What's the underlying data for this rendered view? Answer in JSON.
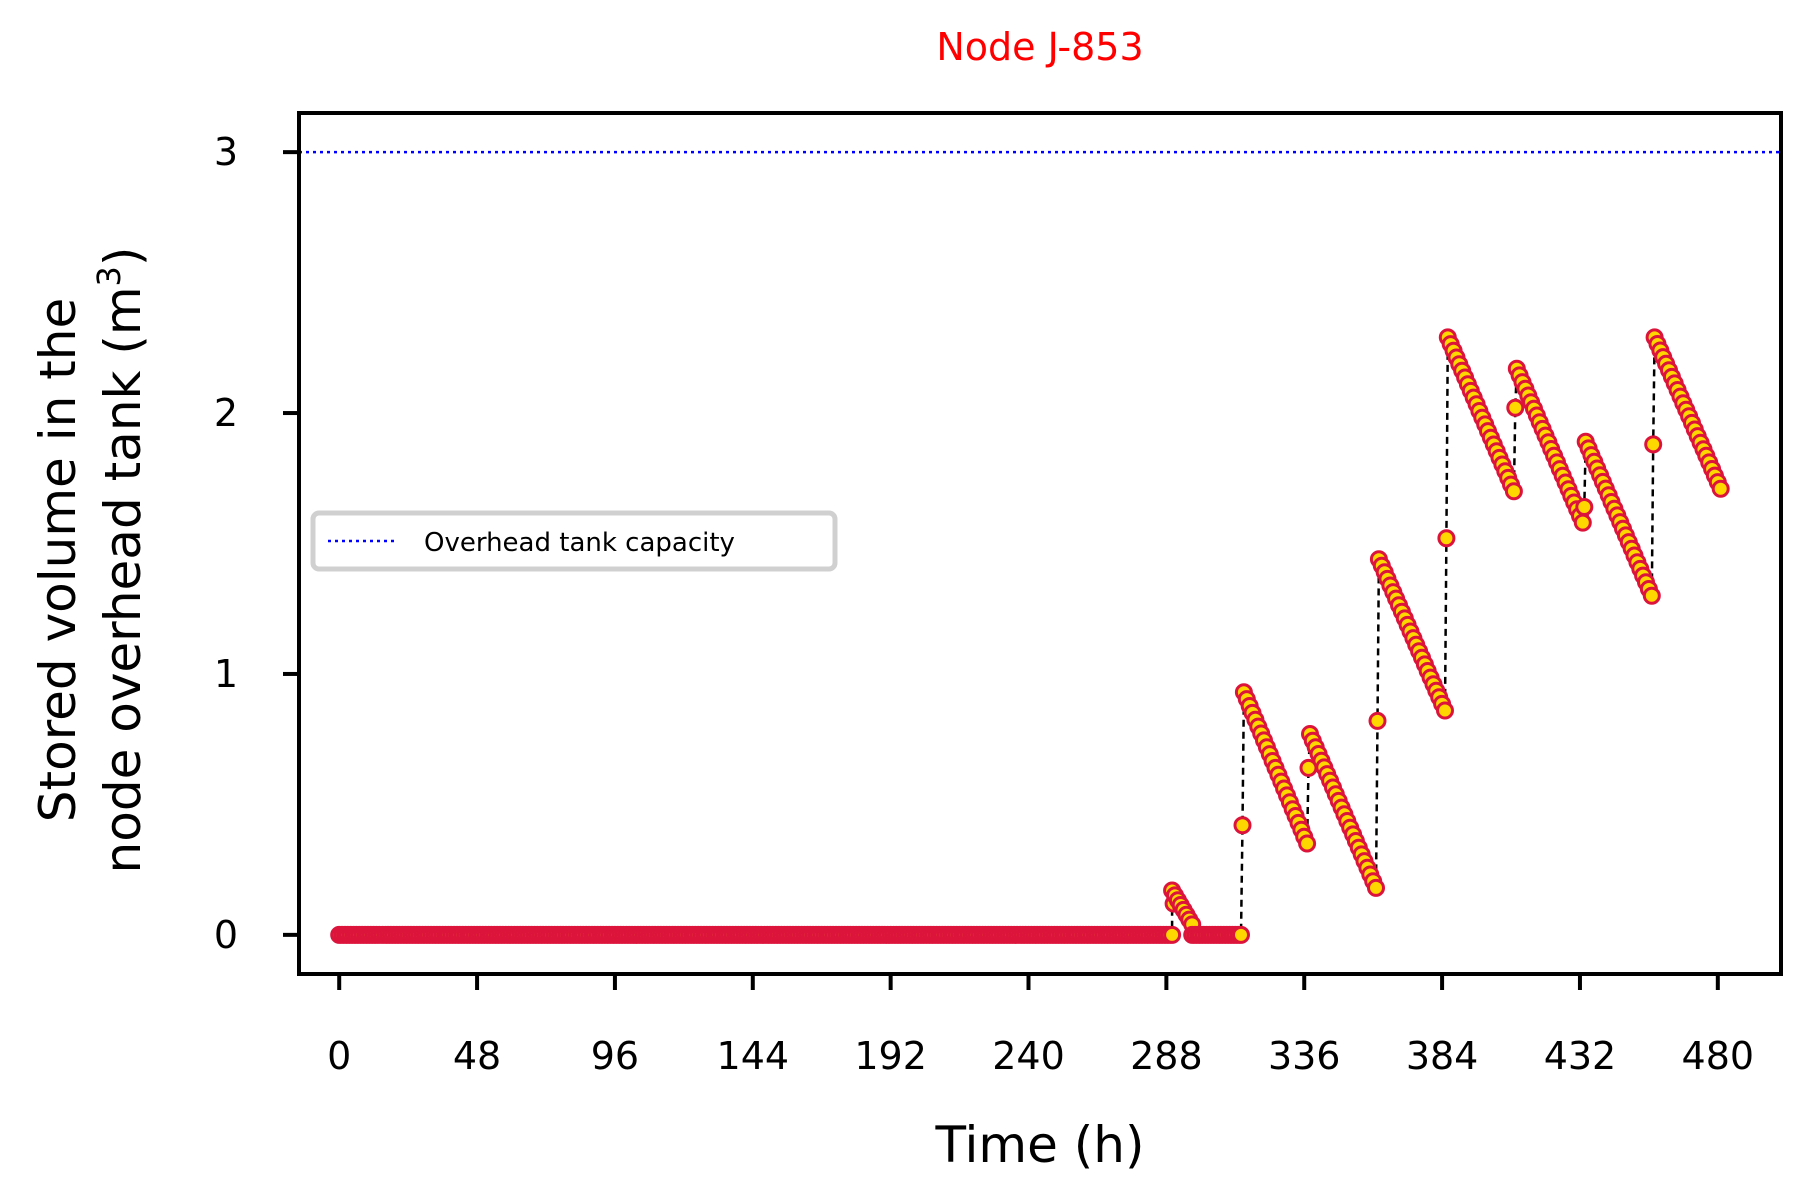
{
  "chart_data": {
    "type": "line",
    "title": "Node J-853",
    "title_color": "#ff0000",
    "xlabel": "Time (h)",
    "ylabel_line1": "Stored volume in the",
    "ylabel_line2": "node overhead tank (m",
    "ylabel_sup": "3",
    "ylabel_close": ")",
    "xlim": [
      -14,
      502
    ],
    "ylim": [
      -0.15,
      3.15
    ],
    "xticks": [
      0,
      48,
      96,
      144,
      192,
      240,
      288,
      336,
      384,
      432,
      480
    ],
    "yticks": [
      0,
      1,
      2,
      3
    ],
    "grid": false,
    "legend": {
      "placement": "center-left",
      "entries": [
        {
          "label": "Overhead tank capacity",
          "style": "dotted",
          "color": "#0000ff"
        }
      ]
    },
    "capacity": 3,
    "marker_edge_color": "#dc143c",
    "marker_face_color": "#ffd700",
    "line_color": "#000000",
    "segments": [
      {
        "t0": 0,
        "t1": 290,
        "v0": 0.0,
        "v1": 0.0
      },
      {
        "t0": 290,
        "t1": 297,
        "v0": 0.17,
        "v1": 0.04
      },
      {
        "t0": 297,
        "t1": 314,
        "v0": 0.0,
        "v1": 0.0
      },
      {
        "t0": 315,
        "t1": 337,
        "v0": 0.93,
        "v1": 0.35
      },
      {
        "t0": 338,
        "t1": 361,
        "v0": 0.77,
        "v1": 0.18
      },
      {
        "t0": 362,
        "t1": 385,
        "v0": 1.44,
        "v1": 0.86
      },
      {
        "t0": 386,
        "t1": 409,
        "v0": 2.29,
        "v1": 1.7
      },
      {
        "t0": 410,
        "t1": 433,
        "v0": 2.17,
        "v1": 1.58
      },
      {
        "t0": 434,
        "t1": 457,
        "v0": 1.89,
        "v1": 1.3
      },
      {
        "t0": 458,
        "t1": 481,
        "v0": 2.29,
        "v1": 1.71
      }
    ],
    "jumps": [
      {
        "t": 290,
        "v": 0.12
      },
      {
        "t": 314,
        "v": 0.42
      },
      {
        "t": 337,
        "v": 0.64
      },
      {
        "t": 361,
        "v": 0.82
      },
      {
        "t": 385,
        "v": 1.52
      },
      {
        "t": 409,
        "v": 2.02
      },
      {
        "t": 433,
        "v": 1.64
      },
      {
        "t": 457,
        "v": 1.88
      }
    ]
  }
}
